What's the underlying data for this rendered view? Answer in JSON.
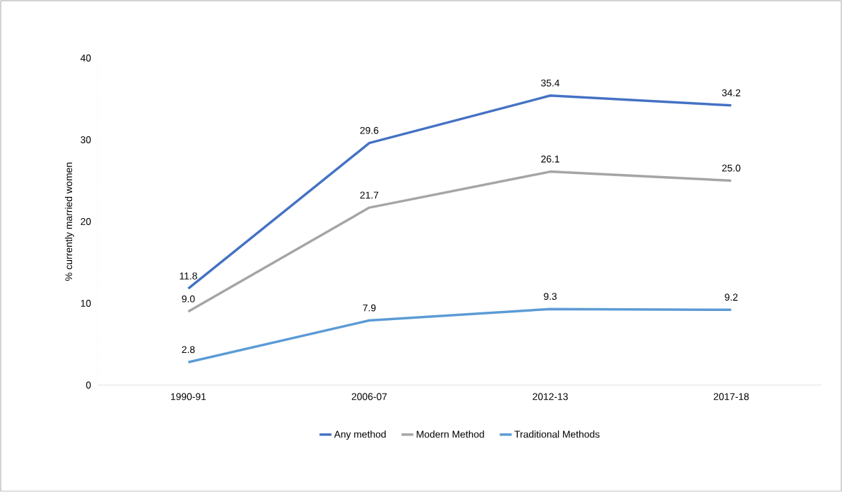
{
  "chart_data": {
    "type": "line",
    "ylabel": "% currently married women",
    "categories": [
      "1990-91",
      "2006-07",
      "2012-13",
      "2017-18"
    ],
    "series": [
      {
        "name": "Any method",
        "color": "#4472c4",
        "values": [
          11.8,
          29.6,
          35.4,
          34.2
        ],
        "value_labels": [
          "11.8",
          "29.6",
          "35.4",
          "34.2"
        ]
      },
      {
        "name": "Modern Method",
        "color": "#a5a5a5",
        "values": [
          9.0,
          21.7,
          26.1,
          25.0
        ],
        "value_labels": [
          "9.0",
          "21.7",
          "26.1",
          "25.0"
        ]
      },
      {
        "name": "Traditional Methods",
        "color": "#5b9bd5",
        "values": [
          2.8,
          7.9,
          9.3,
          9.2
        ],
        "value_labels": [
          "2.8",
          "7.9",
          "9.3",
          "9.2"
        ]
      }
    ],
    "ylim": [
      0,
      40
    ],
    "yticks": [
      0,
      10,
      20,
      30,
      40
    ],
    "grid": false,
    "legend": "bottom",
    "marker": "none",
    "line_style": "solid"
  }
}
